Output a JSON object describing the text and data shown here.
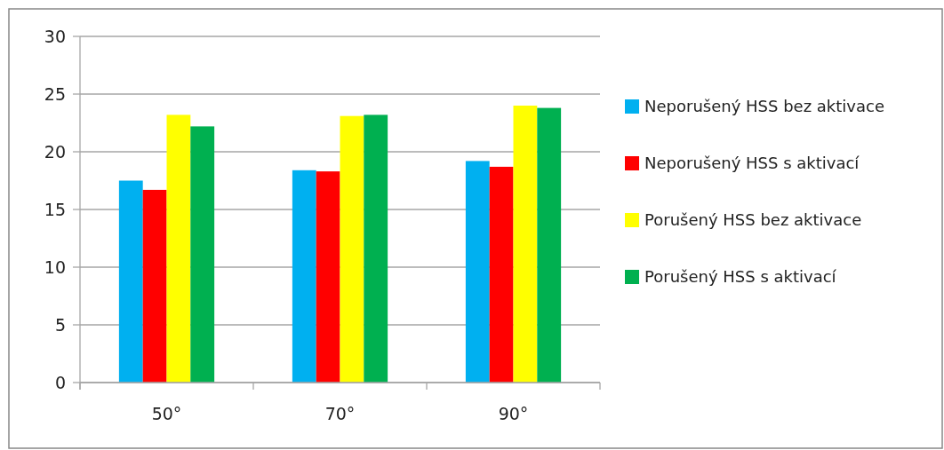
{
  "chart_data": {
    "type": "bar",
    "categories": [
      "50°",
      "70°",
      "90°"
    ],
    "series": [
      {
        "name": "Neporušený HSS bez aktivace",
        "color": "#00b0f0",
        "values": [
          17.5,
          18.4,
          19.2
        ]
      },
      {
        "name": "Neporušený HSS s aktivací",
        "color": "#ff0000",
        "values": [
          16.7,
          18.3,
          18.7
        ]
      },
      {
        "name": "Porušený HSS bez aktivace",
        "color": "#ffff00",
        "values": [
          23.2,
          23.1,
          24.0
        ]
      },
      {
        "name": "Porušený HSS s aktivací",
        "color": "#00b050",
        "values": [
          22.2,
          23.2,
          23.8
        ]
      }
    ],
    "ylim": [
      0,
      30
    ],
    "yticks": [
      0,
      5,
      10,
      15,
      20,
      25,
      30
    ],
    "grid": "y",
    "legend": "right"
  }
}
